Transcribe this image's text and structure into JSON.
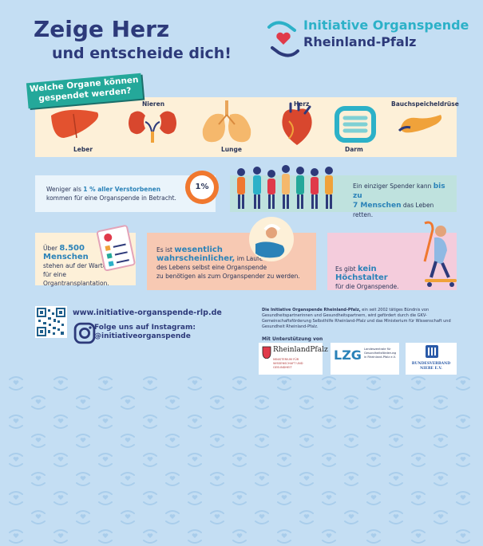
{
  "header": {
    "title_line1": "Zeige Herz",
    "title_line2": "und entscheide dich!",
    "logo_line1": "Initiative Organspende",
    "logo_line2": "Rheinland-Pfalz"
  },
  "organs": {
    "heading": "Welche Organe können gespendet werden?",
    "items": [
      {
        "label": "Leber",
        "icon": "liver-icon"
      },
      {
        "label": "Nieren",
        "icon": "kidneys-icon"
      },
      {
        "label": "Lunge",
        "icon": "lungs-icon"
      },
      {
        "label": "Herz",
        "icon": "heart-icon"
      },
      {
        "label": "Darm",
        "icon": "intestine-icon"
      },
      {
        "label": "Bauchspeicheldrüse",
        "icon": "pancreas-icon"
      }
    ]
  },
  "facts": {
    "percent": {
      "pre": "Weniger als",
      "bold": "1 % aller Verstorbenen",
      "post": "kommen für eine Organspende in Betracht.",
      "badge": "1%"
    },
    "spender": {
      "pre": "Ein einziger Spender kann",
      "bold1": "bis zu",
      "bold2": "7 Menschen",
      "post": "das Leben retten."
    },
    "warteliste": {
      "line1": "Über",
      "bold1": "8.500",
      "bold2": "Menschen",
      "post1": "stehen auf der Warteliste",
      "post2": "für eine Organtransplantation."
    },
    "wahrscheinlich": {
      "pre": "Es ist",
      "bold1": "wesentlich",
      "bold2": "wahrscheinlicher,",
      "post1": "im Laufe",
      "post2": "des Lebens selbst eine Organspende",
      "post3": "zu benötigen als zum Organspender zu werden."
    },
    "alter": {
      "pre": "Es gibt",
      "bold": "kein Höchstalter",
      "post": "für die Organspende."
    }
  },
  "footer": {
    "url": "www.initiative-organspende-rlp.de",
    "instagram_line1": "Folge uns auf Instagram:",
    "instagram_line2": "@initiativeorganspende",
    "imprint_bold": "Die Initiative Organspende Rheinland-Pfalz,",
    "imprint_text": "ein seit 2002 tätiges Bündnis von Gesundheitspartnerinnen und Gesundheitspartnern, wird gefördert durch die GKV-Gemeinschaftsförderung Selbsthilfe Rheinland-Pfalz und das Ministerium für Wissenschaft und Gesundheit Rheinland-Pfalz.",
    "support_label": "Mit Unterstützung von",
    "sponsors": {
      "rlp": "RheinlandPfalz",
      "rlp_sub": "MINISTERIUM FÜR WISSENSCHAFT UND GESUNDHEIT",
      "lzg": "LZG",
      "lzg_sub": "Landeszentrale für Gesundheitsförderung in Rheinland-Pfalz e.V.",
      "niere": "BUNDESVERBAND NIERE E.V."
    }
  },
  "colors": {
    "bg": "#c4def3",
    "teal": "#24a89a",
    "navy": "#2d3a7a",
    "blue": "#2a82b8"
  }
}
